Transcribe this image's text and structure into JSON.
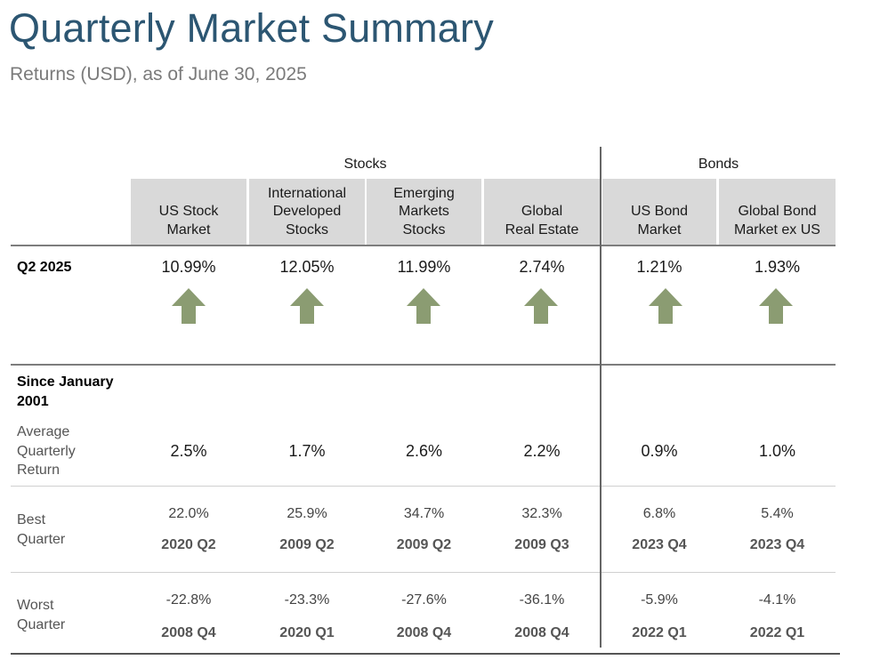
{
  "title": "Quarterly Market Summary",
  "subtitle": "Returns (USD), as of June 30, 2025",
  "groups": {
    "stocks": "Stocks",
    "bonds": "Bonds"
  },
  "columns": [
    "US Stock\nMarket",
    "International\nDeveloped\nStocks",
    "Emerging\nMarkets\nStocks",
    "Global\nReal Estate",
    "US Bond\nMarket",
    "Global Bond\nMarket ex US"
  ],
  "q2": {
    "label": "Q2 2025",
    "values": [
      "10.99%",
      "12.05%",
      "11.99%",
      "2.74%",
      "1.21%",
      "1.93%"
    ],
    "direction": [
      "up",
      "up",
      "up",
      "up",
      "up",
      "up"
    ],
    "arrow_color": "#8b9c72"
  },
  "since": {
    "label": "Since January\n2001",
    "average": {
      "label": "Average\nQuarterly\nReturn",
      "values": [
        "2.5%",
        "1.7%",
        "2.6%",
        "2.2%",
        "0.9%",
        "1.0%"
      ]
    },
    "best": {
      "label": "Best\nQuarter",
      "values": [
        "22.0%",
        "25.9%",
        "34.7%",
        "32.3%",
        "6.8%",
        "5.4%"
      ],
      "quarters": [
        "2020 Q2",
        "2009 Q2",
        "2009 Q2",
        "2009 Q3",
        "2023 Q4",
        "2023 Q4"
      ]
    },
    "worst": {
      "label": "Worst\nQuarter",
      "values": [
        "-22.8%",
        "-23.3%",
        "-27.6%",
        "-36.1%",
        "-5.9%",
        "-4.1%"
      ],
      "quarters": [
        "2008 Q4",
        "2020 Q1",
        "2008 Q4",
        "2008 Q4",
        "2022 Q1",
        "2022 Q1"
      ]
    }
  },
  "colors": {
    "title": "#2c5672",
    "header_bg": "#d9d9d9",
    "arrow": "#8b9c72"
  }
}
